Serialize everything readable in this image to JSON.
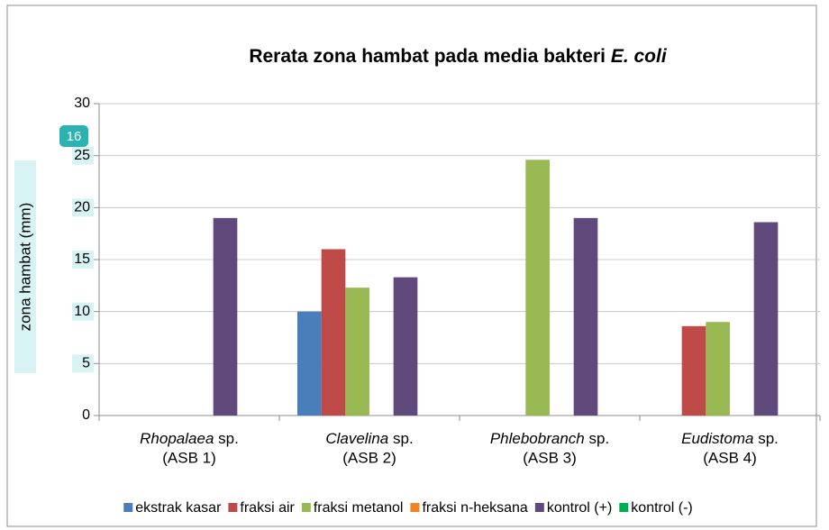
{
  "chart_data": {
    "type": "bar",
    "title": "Rerata zona hambat pada media bakteri",
    "title_italic": "E. coli",
    "y_label": "zona hambat (mm)",
    "annotation": "16",
    "categories": [
      {
        "name": "Rhopalaea",
        "suffix": "sp.",
        "code": "(ASB 1)"
      },
      {
        "name": "Clavelina",
        "suffix": "sp.",
        "code": "(ASB 2)"
      },
      {
        "name": "Phlebobranch",
        "suffix": "sp.",
        "code": "(ASB 3)"
      },
      {
        "name": "Eudistoma",
        "suffix": "sp.",
        "code": "(ASB 4)"
      }
    ],
    "series": [
      {
        "name": "ekstrak kasar",
        "color": "#4a7ebb",
        "values": [
          0,
          10,
          0,
          0
        ]
      },
      {
        "name": "fraksi air",
        "color": "#be4b48",
        "values": [
          0,
          16,
          0,
          8.6
        ]
      },
      {
        "name": "fraksi metanol",
        "color": "#98b954",
        "values": [
          0,
          12.3,
          24.6,
          9
        ]
      },
      {
        "name": "fraksi n-heksana",
        "color": "#f58220",
        "values": [
          0,
          0,
          0,
          0
        ]
      },
      {
        "name": "kontrol (+)",
        "color": "#604a7b",
        "values": [
          19,
          13.3,
          19,
          18.6
        ]
      },
      {
        "name": "kontrol (-)",
        "color": "#00b050",
        "values": [
          0,
          0,
          0,
          0
        ]
      }
    ],
    "ylim": [
      0,
      30
    ],
    "yticks": [
      0,
      5,
      10,
      15,
      20,
      25,
      30
    ],
    "grid": true,
    "legend": "bottom"
  }
}
